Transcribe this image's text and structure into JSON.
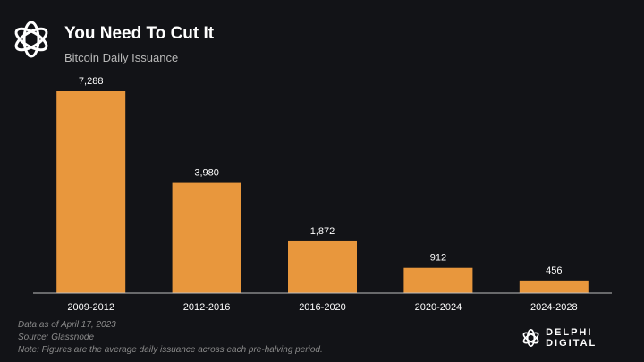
{
  "header": {
    "title": "You Need To Cut It",
    "subtitle": "Bitcoin Daily Issuance"
  },
  "chart_data": {
    "type": "bar",
    "title": "You Need To Cut It",
    "subtitle": "Bitcoin Daily Issuance",
    "categories": [
      "2009-2012",
      "2012-2016",
      "2016-2020",
      "2020-2024",
      "2024-2028"
    ],
    "values": [
      7288,
      3980,
      1872,
      912,
      456
    ],
    "data_labels": [
      "7,288",
      "3,980",
      "1,872",
      "912",
      "456"
    ],
    "xlabel": "",
    "ylabel": "",
    "ylim": [
      0,
      7288
    ],
    "grid": false,
    "bar_color": "#E8973D"
  },
  "footer": {
    "notes": [
      "Data as of April 17, 2023",
      "Source: Glassnode",
      "Note: Figures are the average daily issuance across each pre-halving period."
    ]
  },
  "brand": {
    "name": "DELPHI DIGITAL"
  },
  "colors": {
    "background": "#121317",
    "bar": "#E8973D",
    "axis": "#bfbfbf"
  }
}
